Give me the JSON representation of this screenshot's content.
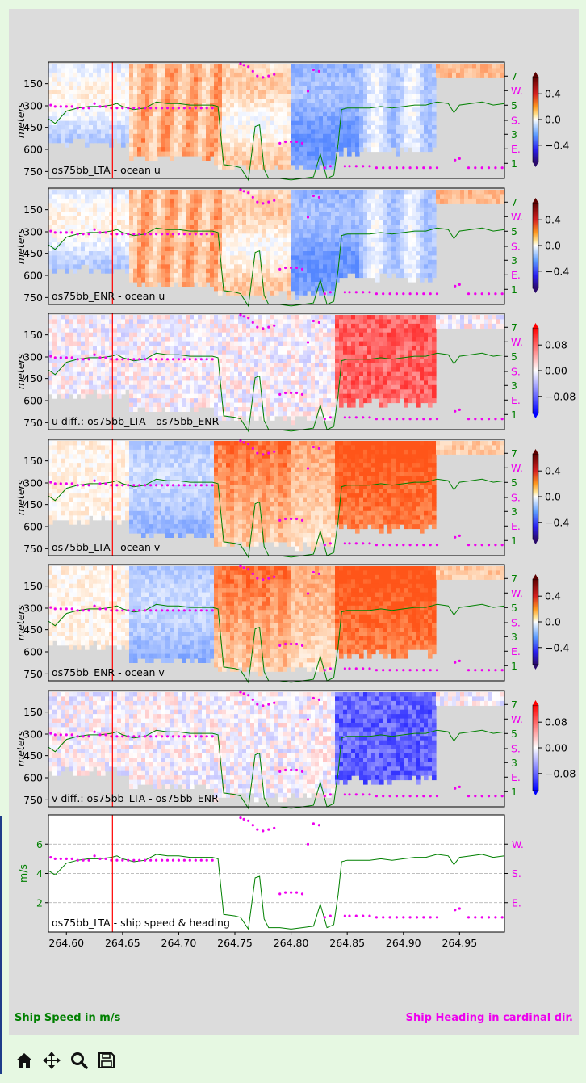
{
  "footer": {
    "left": "Ship Speed in m/s",
    "right": "Ship Heading in cardinal dir."
  },
  "toolbar": {
    "buttons": [
      "home-icon",
      "move-icon",
      "zoom-icon",
      "save-icon"
    ]
  },
  "colors": {
    "speed": "#008000",
    "heading": "#ee00ee",
    "marker": "#ff0000",
    "missing": "#d8d8d8"
  },
  "chart_data": [
    {
      "type": "heatmap",
      "label": "os75bb_LTA - ocean u",
      "ylabel": "meters",
      "yticks": [
        "150",
        "300",
        "450",
        "600",
        "750"
      ],
      "cbar_ticks": [
        "0.4",
        "0.0",
        "−0.4"
      ],
      "cbar_lim": [
        -0.5,
        0.5
      ],
      "colormap": "diverging",
      "right_ticks": [
        "7",
        "W.",
        "5",
        "S.",
        "3",
        "E.",
        "1"
      ]
    },
    {
      "type": "heatmap",
      "label": "os75bb_ENR - ocean u",
      "ylabel": "meters",
      "yticks": [
        "150",
        "300",
        "450",
        "600",
        "750"
      ],
      "cbar_ticks": [
        "0.4",
        "0.0",
        "−0.4"
      ],
      "cbar_lim": [
        -0.5,
        0.5
      ],
      "colormap": "diverging",
      "right_ticks": [
        "7",
        "W.",
        "5",
        "S.",
        "3",
        "E.",
        "1"
      ]
    },
    {
      "type": "heatmap",
      "label": "u diff.: os75bb_LTA - os75bb_ENR",
      "ylabel": "meters",
      "yticks": [
        "150",
        "300",
        "450",
        "600",
        "750"
      ],
      "cbar_ticks": [
        "0.08",
        "0.00",
        "−0.08"
      ],
      "cbar_lim": [
        -0.1,
        0.1
      ],
      "colormap": "bwr",
      "right_ticks": [
        "7",
        "W.",
        "5",
        "S.",
        "3",
        "E.",
        "1"
      ]
    },
    {
      "type": "heatmap",
      "label": "os75bb_LTA - ocean v",
      "ylabel": "meters",
      "yticks": [
        "150",
        "300",
        "450",
        "600",
        "750"
      ],
      "cbar_ticks": [
        "0.4",
        "0.0",
        "−0.4"
      ],
      "cbar_lim": [
        -0.5,
        0.5
      ],
      "colormap": "diverging",
      "right_ticks": [
        "7",
        "W.",
        "5",
        "S.",
        "3",
        "E.",
        "1"
      ]
    },
    {
      "type": "heatmap",
      "label": "os75bb_ENR - ocean v",
      "ylabel": "meters",
      "yticks": [
        "150",
        "300",
        "450",
        "600",
        "750"
      ],
      "cbar_ticks": [
        "0.4",
        "0.0",
        "−0.4"
      ],
      "cbar_lim": [
        -0.5,
        0.5
      ],
      "colormap": "diverging",
      "right_ticks": [
        "7",
        "W.",
        "5",
        "S.",
        "3",
        "E.",
        "1"
      ]
    },
    {
      "type": "heatmap",
      "label": "v diff.: os75bb_LTA - os75bb_ENR",
      "ylabel": "meters",
      "yticks": [
        "150",
        "300",
        "450",
        "600",
        "750"
      ],
      "cbar_ticks": [
        "0.08",
        "0.00",
        "−0.08"
      ],
      "cbar_lim": [
        -0.1,
        0.1
      ],
      "colormap": "bwr",
      "right_ticks": [
        "7",
        "W.",
        "5",
        "S.",
        "3",
        "E.",
        "1"
      ]
    },
    {
      "type": "line",
      "label": "os75bb_LTA - ship speed & heading",
      "ylabel": "m/s",
      "yticks": [
        "6",
        "4",
        "2"
      ],
      "ylim": [
        0,
        8
      ],
      "right_ticks": [
        "W.",
        "S.",
        "E."
      ],
      "xticks": [
        "264.60",
        "264.65",
        "264.70",
        "264.75",
        "264.80",
        "264.85",
        "264.90",
        "264.95"
      ],
      "xlim": [
        264.584,
        264.99
      ],
      "marker_x": 264.641,
      "speed_x": [
        264.584,
        264.59,
        264.6,
        264.61,
        264.62,
        264.63,
        264.64,
        264.645,
        264.65,
        264.66,
        264.67,
        264.68,
        264.69,
        264.7,
        264.71,
        264.72,
        264.73,
        264.735,
        264.74,
        264.75,
        264.755,
        264.762,
        264.768,
        264.772,
        264.776,
        264.78,
        264.79,
        264.8,
        264.81,
        264.82,
        264.826,
        264.832,
        264.838,
        264.842,
        264.845,
        264.85,
        264.86,
        264.87,
        264.88,
        264.89,
        264.9,
        264.91,
        264.92,
        264.93,
        264.94,
        264.945,
        264.95,
        264.96,
        264.97,
        264.98,
        264.99
      ],
      "speed_y": [
        4.2,
        3.9,
        4.7,
        4.9,
        5.0,
        5.0,
        5.1,
        5.2,
        5.0,
        4.8,
        4.9,
        5.3,
        5.2,
        5.2,
        5.1,
        5.1,
        5.1,
        5.0,
        1.2,
        1.1,
        1.0,
        0.2,
        3.7,
        3.8,
        0.9,
        0.3,
        0.3,
        0.2,
        0.3,
        0.4,
        1.9,
        0.3,
        0.5,
        2.6,
        4.8,
        4.9,
        4.9,
        4.9,
        5.0,
        4.9,
        5.0,
        5.1,
        5.1,
        5.3,
        5.2,
        4.6,
        5.1,
        5.2,
        5.3,
        5.1,
        5.2
      ],
      "heading_x": [
        264.586,
        264.59,
        264.595,
        264.6,
        264.605,
        264.61,
        264.615,
        264.62,
        264.625,
        264.63,
        264.635,
        264.64,
        264.645,
        264.65,
        264.655,
        264.66,
        264.665,
        264.67,
        264.675,
        264.68,
        264.685,
        264.69,
        264.695,
        264.7,
        264.705,
        264.71,
        264.715,
        264.72,
        264.725,
        264.73,
        264.755,
        264.758,
        264.762,
        264.766,
        264.77,
        264.775,
        264.78,
        264.785,
        264.79,
        264.795,
        264.8,
        264.805,
        264.81,
        264.815,
        264.82,
        264.825,
        264.83,
        264.835,
        264.848,
        264.852,
        264.858,
        264.864,
        264.87,
        264.876,
        264.882,
        264.888,
        264.894,
        264.9,
        264.906,
        264.912,
        264.918,
        264.924,
        264.93,
        264.946,
        264.95,
        264.958,
        264.964,
        264.97,
        264.976,
        264.982,
        264.988
      ],
      "heading_y": [
        5.1,
        5.0,
        5.0,
        5.0,
        5.0,
        4.9,
        4.9,
        4.9,
        5.2,
        5.0,
        5.0,
        4.9,
        4.9,
        4.9,
        4.9,
        4.9,
        4.9,
        4.9,
        4.9,
        4.9,
        4.9,
        4.9,
        4.9,
        4.9,
        4.9,
        4.9,
        4.9,
        4.9,
        4.9,
        4.9,
        7.8,
        7.7,
        7.6,
        7.3,
        7.0,
        6.9,
        7.0,
        7.1,
        2.6,
        2.7,
        2.7,
        2.7,
        2.6,
        6.0,
        7.4,
        7.3,
        1.0,
        1.1,
        1.1,
        1.1,
        1.1,
        1.1,
        1.1,
        1.0,
        1.0,
        1.0,
        1.0,
        1.0,
        1.0,
        1.0,
        1.0,
        1.0,
        1.0,
        1.5,
        1.6,
        1.0,
        1.0,
        1.0,
        1.0,
        1.0,
        1.0
      ]
    }
  ]
}
